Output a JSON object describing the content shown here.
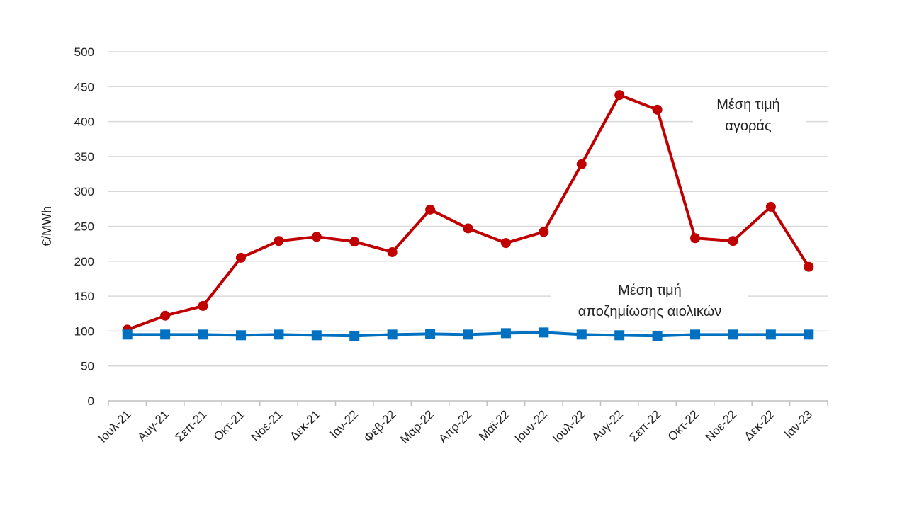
{
  "chart_data": {
    "type": "line",
    "ylabel": "€/MWh",
    "ylim": [
      0,
      500
    ],
    "yticks": [
      0,
      50,
      100,
      150,
      200,
      250,
      300,
      350,
      400,
      450,
      500
    ],
    "grid": true,
    "categories": [
      "Ιουλ-21",
      "Αυγ-21",
      "Σεπ-21",
      "Οκτ-21",
      "Νοε-21",
      "Δεκ-21",
      "Ιαν-22",
      "Φεβ-22",
      "Μαρ-22",
      "Απρ-22",
      "Μαϊ-22",
      "Ιουν-22",
      "Ιουλ-22",
      "Αυγ-22",
      "Σεπ-22",
      "Οκτ-22",
      "Νοε-22",
      "Δεκ-22",
      "Ιαν-23"
    ],
    "series": [
      {
        "name": "Μέση τιμή αγοράς",
        "color": "#c00000",
        "marker": "circle",
        "values": [
          102,
          122,
          136,
          205,
          229,
          235,
          228,
          213,
          274,
          247,
          226,
          242,
          339,
          438,
          417,
          233,
          229,
          278,
          192
        ]
      },
      {
        "name": "Μέση τιμή αποζημίωσης αιολικών",
        "color": "#0070c0",
        "marker": "square",
        "values": [
          95,
          95,
          95,
          94,
          95,
          94,
          93,
          95,
          96,
          95,
          97,
          98,
          95,
          94,
          93,
          95,
          95,
          95,
          95
        ]
      }
    ],
    "annotations": [
      {
        "lines": [
          "Μέση τιμή",
          "αγοράς"
        ],
        "series": 0
      },
      {
        "lines": [
          "Μέση τιμή",
          "αποζημίωσης αιολικών"
        ],
        "series": 1
      }
    ]
  }
}
